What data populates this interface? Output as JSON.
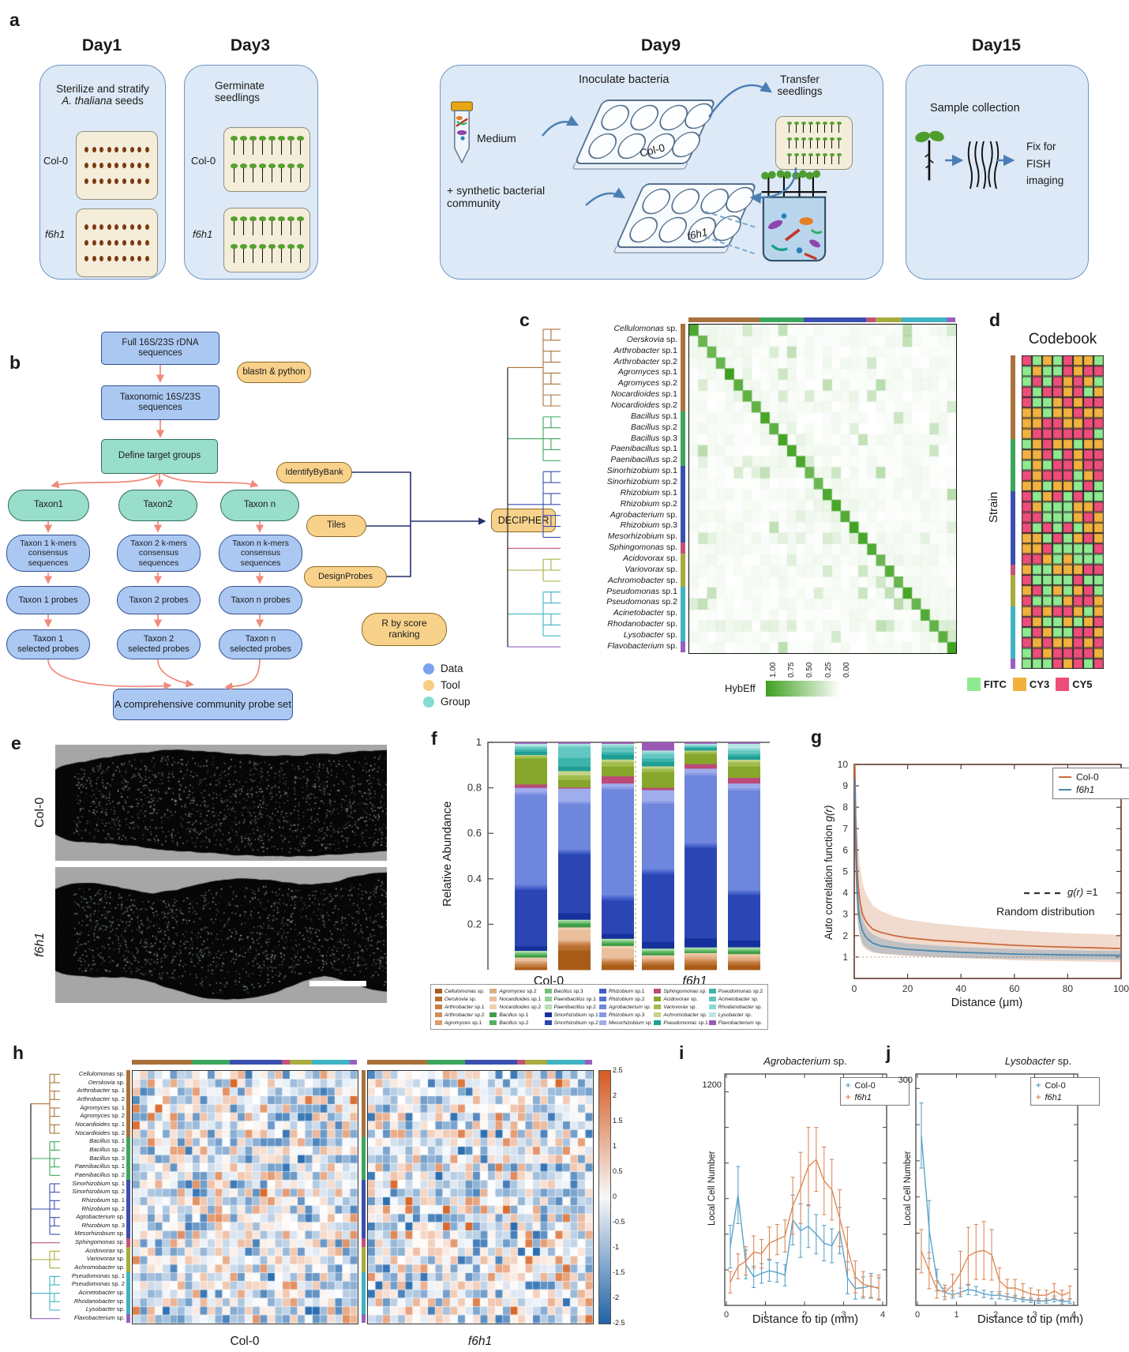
{
  "panel_labels": {
    "a": "a",
    "b": "b",
    "c": "c",
    "d": "d",
    "e": "e",
    "f": "f",
    "g": "g",
    "h": "h",
    "i": "i",
    "j": "j"
  },
  "panel_a": {
    "days": [
      {
        "title": "Day1",
        "line1": "Sterilize and stratify",
        "italic": "A. thaliana",
        "line2": " seeds",
        "row_labels": [
          "Col-0",
          "f6h1"
        ]
      },
      {
        "title": "Day3",
        "line1": "Germinate",
        "line2": "seedlings",
        "row_labels": [
          "Col-0",
          "f6h1"
        ]
      },
      {
        "title": "Day9",
        "inoculate": "Inoculate  bacteria",
        "medium": "Medium",
        "syn1": "+ synthetic bacterial",
        "syn2": "community",
        "transfer": "Transfer\nseedlings",
        "plate_labels": [
          "Col-0",
          "f6h1"
        ]
      },
      {
        "title": "Day15",
        "collection": "Sample collection",
        "fix": "Fix  for\nFISH\nimaging"
      }
    ]
  },
  "panel_b": {
    "nodes": {
      "full": "Full 16S/23S rDNA sequences",
      "taxonomic": "Taxonomic 16S/23S sequences",
      "define": "Define target groups",
      "taxa": [
        "Taxon1",
        "Taxon2",
        "Taxon n"
      ],
      "kmers": [
        "Taxon 1 k-mers\nconsensus\nsequences",
        "Taxon 2 k-mers\nconsensus\nsequences",
        "Taxon n k-mers\nconsensus\nsequences"
      ],
      "probes": [
        "Taxon 1 probes",
        "Taxon 2 probes",
        "Taxon n probes"
      ],
      "selected": [
        "Taxon 1\nselected probes",
        "Taxon 2\nselected probes",
        "Taxon n\nselected probes"
      ],
      "final": "A comprehensive community probe set"
    },
    "tools": {
      "blastn": "blastn & python",
      "identify": "IdentifyByBank",
      "tiles": "Tiles",
      "design": "DesignProbes",
      "decipher": "DECIPHER",
      "rscore": "R by score\nranking"
    },
    "legend": [
      {
        "label": "Data",
        "color": "#7ba3ef"
      },
      {
        "label": "Tool",
        "color": "#f8cf82"
      },
      {
        "label": "Group",
        "color": "#82dcd2"
      }
    ]
  },
  "species": [
    {
      "genus": "Cellulomonas",
      "sp": "sp.",
      "color": "#a85c18",
      "group": 0
    },
    {
      "genus": "Oerskovia",
      "sp": "sp.",
      "color": "#b96f2e",
      "group": 0
    },
    {
      "genus": "Arthrobacter",
      "sp": "sp.1",
      "color": "#c57f44",
      "group": 0
    },
    {
      "genus": "Arthrobacter",
      "sp": "sp.2",
      "color": "#cf9059",
      "group": 0
    },
    {
      "genus": "Agromyces",
      "sp": "sp.1",
      "color": "#d89e6e",
      "group": 0
    },
    {
      "genus": "Agromyces",
      "sp": "sp.2",
      "color": "#e0ad83",
      "group": 0
    },
    {
      "genus": "Nocardioides",
      "sp": "sp.1",
      "color": "#e9bf9d",
      "group": 0
    },
    {
      "genus": "Nocardioides",
      "sp": "sp.2",
      "color": "#f0d0b4",
      "group": 0
    },
    {
      "genus": "Bacillus",
      "sp": "sp.1",
      "color": "#3f9e47",
      "group": 1
    },
    {
      "genus": "Bacillus",
      "sp": "sp.2",
      "color": "#56b15e",
      "group": 1
    },
    {
      "genus": "Bacillus",
      "sp": "sp.3",
      "color": "#73c178",
      "group": 1
    },
    {
      "genus": "Paenibacillus",
      "sp": "sp.1",
      "color": "#93d194",
      "group": 1
    },
    {
      "genus": "Paenibacillus",
      "sp": "sp.2",
      "color": "#b4e0b2",
      "group": 1
    },
    {
      "genus": "Sinorhizobium",
      "sp": "sp.1",
      "color": "#16309c",
      "group": 2
    },
    {
      "genus": "Sinorhizobium",
      "sp": "sp.2",
      "color": "#2b46b4",
      "group": 2
    },
    {
      "genus": "Rhizobium",
      "sp": "sp.1",
      "color": "#3f5cc6",
      "group": 2
    },
    {
      "genus": "Rhizobium",
      "sp": "sp.2",
      "color": "#5671d2",
      "group": 2
    },
    {
      "genus": "Agrobacterium",
      "sp": "sp.",
      "color": "#6e86dc",
      "group": 2
    },
    {
      "genus": "Rhizobium",
      "sp": "sp.3",
      "color": "#8598e4",
      "group": 2
    },
    {
      "genus": "Mesorhizobium",
      "sp": "sp.",
      "color": "#9fadec",
      "group": 2
    },
    {
      "genus": "Sphingomonas",
      "sp": "sp.",
      "color": "#bc4a78",
      "group": 3
    },
    {
      "genus": "Acidovorax",
      "sp": "sp.",
      "color": "#86a62c",
      "group": 4
    },
    {
      "genus": "Variovorax",
      "sp": "sp.",
      "color": "#a2bd4e",
      "group": 4
    },
    {
      "genus": "Achromobacter",
      "sp": "sp.",
      "color": "#c2d489",
      "group": 4
    },
    {
      "genus": "Pseudomonas",
      "sp": "sp.1",
      "color": "#1f9e96",
      "group": 5
    },
    {
      "genus": "Pseudomonas",
      "sp": "sp.2",
      "color": "#3cb3ab",
      "group": 5
    },
    {
      "genus": "Acinetobacter",
      "sp": "sp.",
      "color": "#63c6c0",
      "group": 5
    },
    {
      "genus": "Rhodanobacter",
      "sp": "sp.",
      "color": "#8ed7d3",
      "group": 5
    },
    {
      "genus": "Lysobacter",
      "sp": "sp.",
      "color": "#b7e6e4",
      "group": 5
    },
    {
      "genus": "Flavobacterium",
      "sp": "sp.",
      "color": "#9b59b6",
      "group": 6
    }
  ],
  "groups": [
    {
      "color": "#a9713c",
      "count": 8
    },
    {
      "color": "#3ca75c",
      "count": 5
    },
    {
      "color": "#3b4fae",
      "count": 7
    },
    {
      "color": "#c2527a",
      "count": 1
    },
    {
      "color": "#a8ab3d",
      "count": 3
    },
    {
      "color": "#3fb3c2",
      "count": 5
    },
    {
      "color": "#9a5fc0",
      "count": 1
    }
  ],
  "panel_c": {
    "colorbar_label": "HybEff",
    "colorbar_ticks": [
      "1.00",
      "0.75",
      "0.50",
      "0.25",
      "0.00"
    ],
    "heat_color": "#3ea01e"
  },
  "panel_d": {
    "title": "Codebook",
    "ylabel": "Strain",
    "columns": 8,
    "legend": [
      {
        "label": "FITC",
        "color": "#8fe98f"
      },
      {
        "label": "CY3",
        "color": "#f2b13e"
      },
      {
        "label": "CY5",
        "color": "#ee4d7a"
      }
    ]
  },
  "panel_e": {
    "labels": [
      "Col-0",
      "f6h1"
    ]
  },
  "chart_data": [
    {
      "id": "c_hybeff",
      "type": "heatmap",
      "title": "",
      "rows": 30,
      "cols": 30,
      "row_labels": "species list (see species)",
      "description": "probe hybridization efficiency matrix; diagonal ~1.0 (strong green), off-diagonal mostly <0.1",
      "colorbar_label": "HybEff",
      "colorbar_ticks": [
        1.0,
        0.75,
        0.5,
        0.25,
        0.0
      ]
    },
    {
      "id": "d_codebook",
      "type": "heatmap",
      "rows": 30,
      "cols": 8,
      "palette": [
        "FITC",
        "CY3",
        "CY5"
      ],
      "description": "per-strain 8-round fluorophore barcode"
    },
    {
      "id": "f_abundance",
      "type": "bar",
      "stacked": true,
      "ylabel": "Relative Abundance",
      "yticks": [
        "1",
        "0.8",
        "0.6",
        "0.4",
        "0.2"
      ],
      "ylim": [
        0,
        1
      ],
      "group_labels": [
        "Col-0",
        "f6h1"
      ],
      "bars": [
        [
          0.01,
          0.005,
          0.01,
          0.005,
          0.005,
          0.005,
          0.01,
          0.005,
          0.01,
          0.005,
          0.005,
          0.005,
          0.005,
          0.02,
          0.25,
          0.01,
          0.01,
          0.4,
          0.01,
          0.02,
          0.015,
          0.115,
          0.01,
          0.005,
          0.015,
          0.01,
          0.01,
          0.005,
          0.01,
          0.005
        ],
        [
          0.09,
          0.02,
          0.01,
          0.005,
          0.005,
          0.005,
          0.05,
          0.01,
          0.015,
          0.005,
          0.005,
          0.005,
          0.005,
          0.03,
          0.27,
          0.01,
          0.01,
          0.21,
          0.01,
          0.06,
          0.005,
          0.035,
          0.02,
          0.02,
          0.02,
          0.04,
          0.05,
          0.01,
          0.005,
          0.005
        ],
        [
          0.02,
          0.01,
          0.005,
          0.005,
          0.005,
          0.005,
          0.04,
          0.01,
          0.01,
          0.005,
          0.005,
          0.005,
          0.005,
          0.02,
          0.14,
          0.01,
          0.01,
          0.44,
          0.01,
          0.015,
          0.03,
          0.04,
          0.02,
          0.01,
          0.02,
          0.01,
          0.02,
          0.01,
          0.005,
          0.005
        ],
        [
          0.02,
          0.01,
          0.005,
          0.005,
          0.005,
          0.005,
          0.01,
          0.005,
          0.01,
          0.005,
          0.005,
          0.005,
          0.005,
          0.03,
          0.3,
          0.01,
          0.01,
          0.29,
          0.01,
          0.05,
          0.01,
          0.07,
          0.015,
          0.01,
          0.02,
          0.015,
          0.02,
          0.01,
          0.005,
          0.035
        ],
        [
          0.02,
          0.01,
          0.01,
          0.005,
          0.005,
          0.01,
          0.01,
          0.005,
          0.005,
          0.005,
          0.005,
          0.005,
          0.005,
          0.04,
          0.4,
          0.01,
          0.01,
          0.3,
          0.01,
          0.02,
          0.02,
          0.045,
          0.01,
          0.005,
          0.01,
          0.005,
          0.005,
          0.005,
          0.005,
          0.005
        ],
        [
          0.02,
          0.01,
          0.005,
          0.005,
          0.005,
          0.01,
          0.01,
          0.005,
          0.01,
          0.005,
          0.005,
          0.005,
          0.005,
          0.03,
          0.2,
          0.01,
          0.01,
          0.44,
          0.01,
          0.02,
          0.025,
          0.05,
          0.02,
          0.01,
          0.015,
          0.01,
          0.015,
          0.01,
          0.02,
          0.005
        ]
      ]
    },
    {
      "id": "g_autocorr",
      "type": "line",
      "ylabel": "Auto correlation function ",
      "ylabel_math": "g(r)",
      "xlabel": "Distance (μm)",
      "ylim": [
        0,
        10
      ],
      "yticks": [
        1,
        2,
        3,
        4,
        5,
        6,
        7,
        8,
        9,
        10
      ],
      "xticks": [
        0,
        20,
        40,
        60,
        80,
        100
      ],
      "x": [
        0.2,
        0.5,
        1,
        1.5,
        2,
        3,
        4,
        5,
        7,
        10,
        15,
        20,
        30,
        40,
        50,
        60,
        70,
        80,
        90,
        100
      ],
      "series": [
        {
          "name": "Col-0",
          "color": "#c96a3c",
          "values": [
            10,
            7.6,
            5.3,
            4.3,
            3.7,
            3.05,
            2.75,
            2.55,
            2.3,
            2.15,
            2.0,
            1.9,
            1.78,
            1.7,
            1.62,
            1.55,
            1.5,
            1.46,
            1.43,
            1.4
          ],
          "band": [
            3.5,
            2.8,
            2.2,
            1.9,
            1.7,
            1.5,
            1.35,
            1.25,
            1.1,
            1.0,
            0.9,
            0.85,
            0.8,
            0.75,
            0.72,
            0.7,
            0.68,
            0.66,
            0.65,
            0.64
          ]
        },
        {
          "name": "f6h1",
          "color": "#4d87ad",
          "values": [
            9.3,
            6.3,
            4.2,
            3.3,
            2.75,
            2.25,
            2.0,
            1.85,
            1.65,
            1.52,
            1.43,
            1.36,
            1.28,
            1.22,
            1.18,
            1.14,
            1.12,
            1.1,
            1.09,
            1.08
          ],
          "band": [
            1.8,
            1.4,
            1.0,
            0.8,
            0.7,
            0.6,
            0.5,
            0.45,
            0.4,
            0.35,
            0.3,
            0.28,
            0.26,
            0.25,
            0.24,
            0.23,
            0.22,
            0.22,
            0.21,
            0.21
          ]
        }
      ],
      "annotation_math": "g(r)",
      "annotation_eq": " =1",
      "annotation2": "Random distribution"
    },
    {
      "id": "h_corr",
      "type": "heatmap",
      "panels": [
        "Col-0",
        "f6h1"
      ],
      "rows": 30,
      "cols": 30,
      "range": [
        -2.5,
        2.5
      ],
      "colorbar_ticks": [
        "2.5",
        "2",
        "1.5",
        "1",
        "0.5",
        "0",
        "-0.5",
        "-1",
        "-1.5",
        "-2",
        "-2.5"
      ],
      "description": "pairwise spatial correlation matrices (blue negative, orange positive)"
    },
    {
      "id": "i_agro",
      "type": "line",
      "title_genus": "Agrobacterium",
      "title_suffix": " sp.",
      "ylabel": "Local Cell Number",
      "ymax_label": "1200",
      "xlabel": "Distance to tip (mm)",
      "xticks": [
        0,
        1,
        2,
        3,
        4
      ],
      "ylim": [
        0,
        1300
      ],
      "x": [
        0.1,
        0.3,
        0.5,
        0.7,
        0.9,
        1.1,
        1.3,
        1.5,
        1.7,
        1.9,
        2.1,
        2.3,
        2.5,
        2.7,
        2.9,
        3.1,
        3.3,
        3.5,
        3.7,
        3.9
      ],
      "series": [
        {
          "name": "Col-0",
          "color": "#5ba3c9",
          "values": [
            330,
            620,
            230,
            160,
            180,
            195,
            185,
            170,
            480,
            420,
            445,
            400,
            350,
            335,
            420,
            155,
            95,
            100,
            110,
            95
          ],
          "errors": [
            120,
            160,
            80,
            60,
            55,
            60,
            55,
            60,
            140,
            150,
            120,
            110,
            100,
            95,
            130,
            90,
            60,
            60,
            70,
            60
          ]
        },
        {
          "name": "f6h1",
          "color": "#dd8a5b",
          "values": [
            130,
            220,
            250,
            300,
            290,
            350,
            370,
            390,
            560,
            660,
            780,
            820,
            700,
            650,
            490,
            320,
            160,
            120,
            105,
            100
          ],
          "errors": [
            60,
            70,
            80,
            90,
            80,
            90,
            85,
            90,
            160,
            200,
            220,
            180,
            190,
            170,
            160,
            120,
            90,
            70,
            60,
            70
          ]
        }
      ]
    },
    {
      "id": "j_lyso",
      "type": "line",
      "title_genus": "Lysobacter",
      "title_suffix": " sp.",
      "ylabel": "Local Cell Number",
      "ymax_label": "300",
      "xlabel": "Distance to tip (mm)",
      "xticks": [
        0,
        1,
        2,
        3,
        4
      ],
      "ylim": [
        0,
        320
      ],
      "x": [
        0.1,
        0.3,
        0.5,
        0.7,
        0.9,
        1.1,
        1.3,
        1.5,
        1.7,
        1.9,
        2.1,
        2.3,
        2.5,
        2.7,
        2.9,
        3.1,
        3.3,
        3.5,
        3.7,
        3.9
      ],
      "series": [
        {
          "name": "Col-0",
          "color": "#5ba3c9",
          "values": [
            235,
            105,
            35,
            18,
            15,
            18,
            22,
            20,
            16,
            14,
            14,
            12,
            10,
            8,
            7,
            6,
            6,
            9,
            5,
            6
          ],
          "errors": [
            45,
            40,
            15,
            6,
            5,
            6,
            7,
            6,
            5,
            5,
            5,
            4,
            4,
            3,
            3,
            3,
            3,
            4,
            3,
            3
          ]
        },
        {
          "name": "f6h1",
          "color": "#dd8a5b",
          "values": [
            75,
            48,
            22,
            18,
            28,
            45,
            68,
            74,
            76,
            70,
            34,
            24,
            24,
            20,
            16,
            14,
            14,
            20,
            14,
            18
          ],
          "errors": [
            30,
            25,
            12,
            10,
            15,
            30,
            40,
            38,
            40,
            35,
            18,
            12,
            12,
            10,
            8,
            7,
            7,
            10,
            7,
            9
          ]
        }
      ]
    }
  ],
  "panel_g_legend": [
    "Col-0",
    "f6h1"
  ],
  "panel_h": {
    "group_labels": [
      "Col-0",
      "f6h1"
    ]
  }
}
